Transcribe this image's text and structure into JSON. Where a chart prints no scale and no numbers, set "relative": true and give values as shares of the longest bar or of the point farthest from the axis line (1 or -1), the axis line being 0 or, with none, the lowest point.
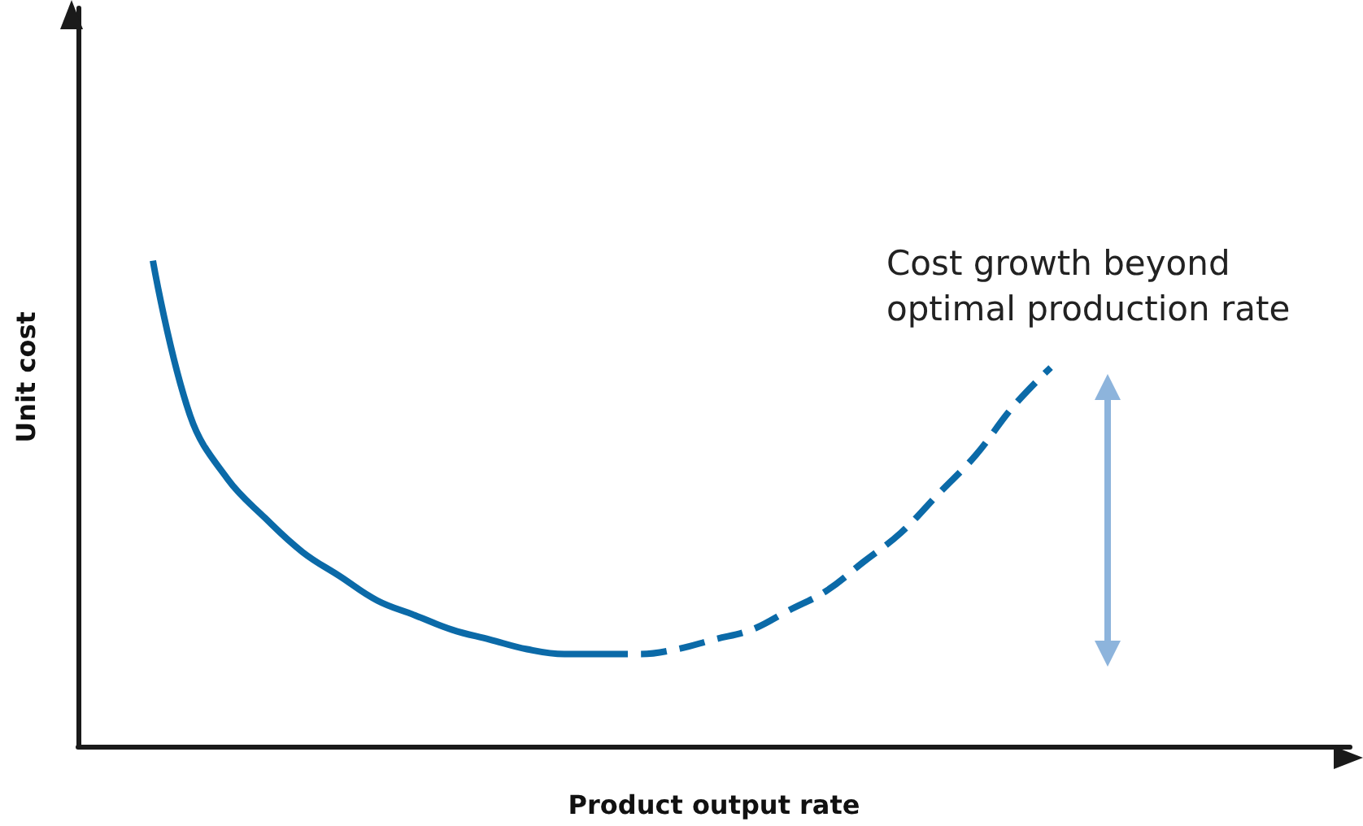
{
  "chart_data": {
    "type": "line",
    "relative": true,
    "xlabel": "Product output rate",
    "ylabel": "Unit cost",
    "marker": "none",
    "annotations": [
      "Cost growth beyond\noptimal production rate"
    ],
    "categories": [
      null,
      null,
      null,
      null,
      null,
      null,
      null,
      null,
      null,
      null,
      null,
      null,
      null,
      null,
      null,
      null,
      null,
      null,
      null,
      null,
      null,
      null,
      null,
      null,
      null,
      null,
      null,
      null,
      null,
      null,
      null,
      null,
      null,
      null,
      null
    ],
    "series": [
      {
        "color": "#0b6aa8",
        "line_style": "solid",
        "values": [
          null,
          null,
          1.0,
          0.68,
          0.55,
          0.47,
          0.4,
          0.35,
          0.3,
          0.27,
          0.24,
          0.22,
          0.2,
          0.19,
          0.19,
          null,
          null,
          null,
          null,
          null,
          null,
          null,
          null,
          null,
          null,
          null,
          null,
          null,
          null,
          null,
          null,
          null,
          null,
          null,
          null
        ]
      },
      {
        "color": "#0b6aa8",
        "line_style": "dashed",
        "values": [
          null,
          null,
          null,
          null,
          null,
          null,
          null,
          null,
          null,
          null,
          null,
          null,
          null,
          null,
          0.19,
          0.19,
          0.2,
          0.22,
          0.24,
          0.28,
          0.32,
          0.38,
          0.44,
          0.52,
          0.6,
          0.7,
          0.78,
          null,
          null,
          null,
          null,
          null,
          null,
          null,
          null
        ]
      }
    ]
  }
}
